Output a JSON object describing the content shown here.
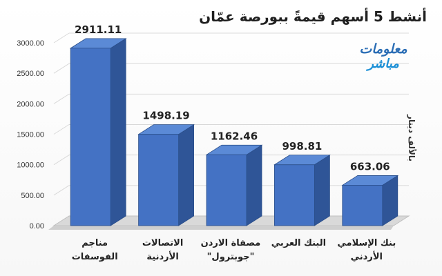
{
  "title": "أنشط 5 أسهم قيمةً ببورصة عمّان",
  "unit_label": "بالألف دينار",
  "logo": {
    "line1": "معلومات",
    "line2": "مباشر"
  },
  "colors": {
    "bar_front": "#4472c4",
    "bar_side": "#2f5597",
    "bar_top": "#5b8ad6",
    "axis_text": "#333333"
  },
  "chart_data": {
    "type": "bar",
    "title": "أنشط 5 أسهم قيمةً ببورصة عمّان",
    "ylabel": "بالألف دينار",
    "xlabel": "",
    "ylim": [
      0,
      3000
    ],
    "y_ticks": [
      "0.00",
      "500.00",
      "1000.00",
      "1500.00",
      "2000.00",
      "2500.00",
      "3000.00"
    ],
    "grid": true,
    "three_d": true,
    "categories": [
      [
        "مناجم",
        "الفوسفات"
      ],
      [
        "الاتصالات",
        "الأردنية"
      ],
      [
        "مصفاة الاردن",
        "\"جوبترول\""
      ],
      [
        "البنك العربي"
      ],
      [
        "بنك الإسلامي",
        "الأردني"
      ]
    ],
    "values": [
      2911.11,
      1498.19,
      1162.46,
      998.81,
      663.06
    ],
    "value_labels": [
      "2911.11",
      "1498.19",
      "1162.46",
      "998.81",
      "663.06"
    ]
  }
}
